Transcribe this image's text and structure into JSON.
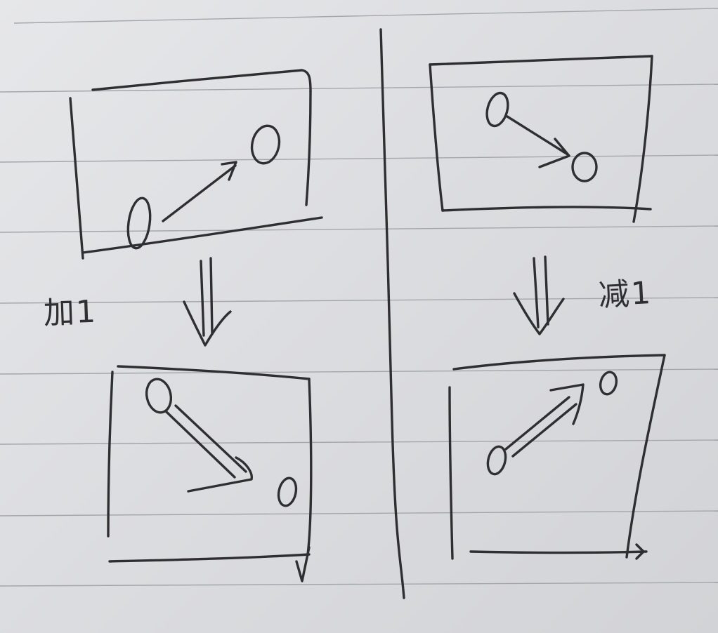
{
  "labels": {
    "left_step": "加1",
    "right_step": "减1"
  },
  "colors": {
    "paper": "#dcdde0",
    "ruled_line": "#a3a6ab",
    "ink": "#2f2f31"
  },
  "icons": {
    "down_arrow": "double-down-arrow-icon"
  }
}
